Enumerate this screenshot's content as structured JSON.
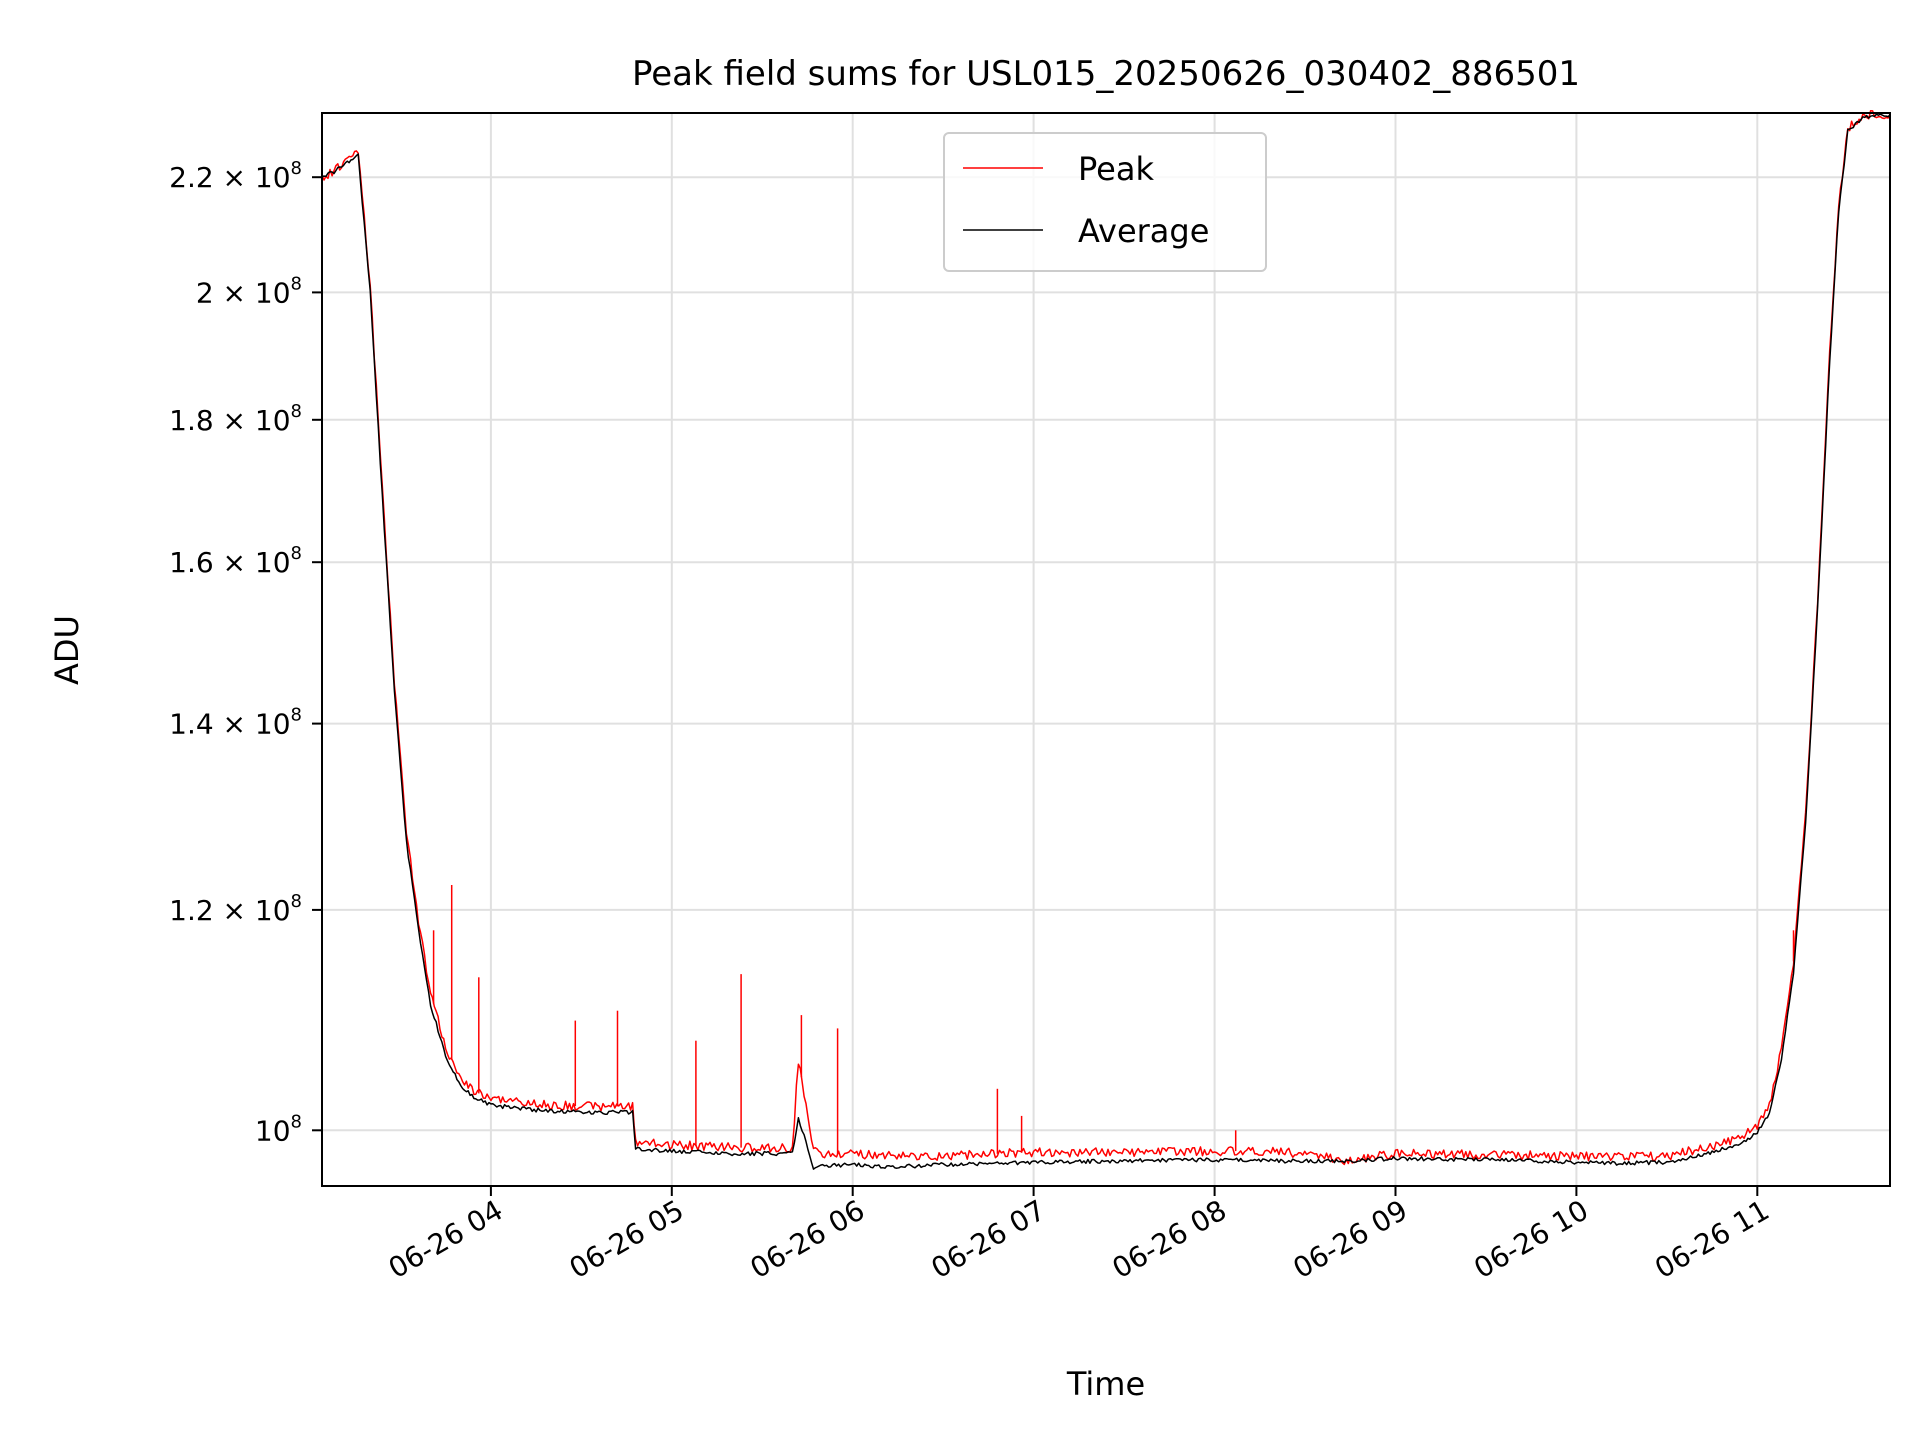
{
  "chart_data": {
    "type": "line",
    "title": "Peak field sums for USL015_20250626_030402_886501",
    "xlabel": "Time",
    "ylabel": "ADU",
    "yscale": "log",
    "grid": true,
    "legend_position": "top-center",
    "xlim": [
      "2025-06-26 03:04",
      "2025-06-26 11:44"
    ],
    "ylim": [
      95500000.0,
      232000000.0
    ],
    "x_ticks": [
      {
        "t": "2025-06-26 04:00",
        "label": "06-26 04"
      },
      {
        "t": "2025-06-26 05:00",
        "label": "06-26 05"
      },
      {
        "t": "2025-06-26 06:00",
        "label": "06-26 06"
      },
      {
        "t": "2025-06-26 07:00",
        "label": "06-26 07"
      },
      {
        "t": "2025-06-26 08:00",
        "label": "06-26 08"
      },
      {
        "t": "2025-06-26 09:00",
        "label": "06-26 09"
      },
      {
        "t": "2025-06-26 10:00",
        "label": "06-26 10"
      },
      {
        "t": "2025-06-26 11:00",
        "label": "06-26 11"
      }
    ],
    "y_ticks": [
      {
        "v": 100000000,
        "mant": "10",
        "exp": "8"
      },
      {
        "v": 120000000,
        "mant": "1.2 × 10",
        "exp": "8"
      },
      {
        "v": 140000000,
        "mant": "1.4 × 10",
        "exp": "8"
      },
      {
        "v": 160000000,
        "mant": "1.6 × 10",
        "exp": "8"
      },
      {
        "v": 180000000,
        "mant": "1.8 × 10",
        "exp": "8"
      },
      {
        "v": 200000000,
        "mant": "2 × 10",
        "exp": "8"
      },
      {
        "v": 220000000,
        "mant": "2.2 × 10",
        "exp": "8"
      }
    ],
    "series": [
      {
        "name": "Peak",
        "color": "#ff0000",
        "points": [
          [
            "2025-06-26 03:04",
            220000000.0
          ],
          [
            "2025-06-26 03:08",
            221000000.0
          ],
          [
            "2025-06-26 03:13",
            224000000.0
          ],
          [
            "2025-06-26 03:16",
            225000000.0
          ],
          [
            "2025-06-26 03:20",
            201000000.0
          ],
          [
            "2025-06-26 03:24",
            170000000.0
          ],
          [
            "2025-06-26 03:28",
            145000000.0
          ],
          [
            "2025-06-26 03:32",
            128000000.0
          ],
          [
            "2025-06-26 03:36",
            119000000.0
          ],
          [
            "2025-06-26 03:40",
            112000000.0
          ],
          [
            "2025-06-26 03:45",
            107000000.0
          ],
          [
            "2025-06-26 03:50",
            104500000.0
          ],
          [
            "2025-06-26 03:55",
            103200000.0
          ],
          [
            "2025-06-26 04:00",
            102700000.0
          ],
          [
            "2025-06-26 04:15",
            102200000.0
          ],
          [
            "2025-06-26 04:30",
            102000000.0
          ],
          [
            "2025-06-26 04:47",
            102000000.0
          ],
          [
            "2025-06-26 04:48",
            99000000.0
          ],
          [
            "2025-06-26 05:00",
            98800000.0
          ],
          [
            "2025-06-26 05:20",
            98600000.0
          ],
          [
            "2025-06-26 05:40",
            98500000.0
          ],
          [
            "2025-06-26 05:42",
            106000000.0
          ],
          [
            "2025-06-26 05:47",
            98500000.0
          ],
          [
            "2025-06-26 05:50",
            98000000.0
          ],
          [
            "2025-06-26 06:00",
            98100000.0
          ],
          [
            "2025-06-26 06:10",
            97900000.0
          ],
          [
            "2025-06-26 06:30",
            97900000.0
          ],
          [
            "2025-06-26 07:00",
            98200000.0
          ],
          [
            "2025-06-26 07:30",
            98200000.0
          ],
          [
            "2025-06-26 08:00",
            98300000.0
          ],
          [
            "2025-06-26 08:22",
            98300000.0
          ],
          [
            "2025-06-26 08:45",
            97500000.0
          ],
          [
            "2025-06-26 09:00",
            98100000.0
          ],
          [
            "2025-06-26 09:30",
            98000000.0
          ],
          [
            "2025-06-26 10:00",
            97900000.0
          ],
          [
            "2025-06-26 10:10",
            97800000.0
          ],
          [
            "2025-06-26 10:30",
            97900000.0
          ],
          [
            "2025-06-26 10:45",
            98700000.0
          ],
          [
            "2025-06-26 10:55",
            99500000.0
          ],
          [
            "2025-06-26 11:00",
            100300000.0
          ],
          [
            "2025-06-26 11:04",
            102000000.0
          ],
          [
            "2025-06-26 11:08",
            107000000.0
          ],
          [
            "2025-06-26 11:12",
            115000000.0
          ],
          [
            "2025-06-26 11:16",
            130000000.0
          ],
          [
            "2025-06-26 11:20",
            155000000.0
          ],
          [
            "2025-06-26 11:24",
            190000000.0
          ],
          [
            "2025-06-26 11:27",
            215000000.0
          ],
          [
            "2025-06-26 11:30",
            229000000.0
          ],
          [
            "2025-06-26 11:35",
            231500000.0
          ],
          [
            "2025-06-26 11:44",
            231800000.0
          ]
        ],
        "spikes": [
          [
            "2025-06-26 03:41",
            118000000.0
          ],
          [
            "2025-06-26 03:47",
            122500000.0
          ],
          [
            "2025-06-26 03:56",
            113500000.0
          ],
          [
            "2025-06-26 04:28",
            109500000.0
          ],
          [
            "2025-06-26 04:42",
            110400000.0
          ],
          [
            "2025-06-26 05:08",
            107700000.0
          ],
          [
            "2025-06-26 05:23",
            113800000.0
          ],
          [
            "2025-06-26 05:43",
            110000000.0
          ],
          [
            "2025-06-26 05:55",
            108800000.0
          ],
          [
            "2025-06-26 06:48",
            103500000.0
          ],
          [
            "2025-06-26 06:56",
            101200000.0
          ],
          [
            "2025-06-26 08:07",
            100000000.0
          ],
          [
            "2025-06-26 11:12",
            118000000.0
          ]
        ]
      },
      {
        "name": "Average",
        "color": "#000000",
        "points": [
          [
            "2025-06-26 03:04",
            220000000.0
          ],
          [
            "2025-06-26 03:08",
            221000000.0
          ],
          [
            "2025-06-26 03:13",
            223000000.0
          ],
          [
            "2025-06-26 03:16",
            224000000.0
          ],
          [
            "2025-06-26 03:20",
            200000000.0
          ],
          [
            "2025-06-26 03:24",
            169000000.0
          ],
          [
            "2025-06-26 03:28",
            144000000.0
          ],
          [
            "2025-06-26 03:32",
            127000000.0
          ],
          [
            "2025-06-26 03:36",
            118000000.0
          ],
          [
            "2025-06-26 03:40",
            111000000.0
          ],
          [
            "2025-06-26 03:45",
            106300000.0
          ],
          [
            "2025-06-26 03:50",
            103800000.0
          ],
          [
            "2025-06-26 03:55",
            102700000.0
          ],
          [
            "2025-06-26 04:00",
            102100000.0
          ],
          [
            "2025-06-26 04:15",
            101700000.0
          ],
          [
            "2025-06-26 04:30",
            101500000.0
          ],
          [
            "2025-06-26 04:47",
            101500000.0
          ],
          [
            "2025-06-26 04:48",
            98500000.0
          ],
          [
            "2025-06-26 05:00",
            98300000.0
          ],
          [
            "2025-06-26 05:20",
            98100000.0
          ],
          [
            "2025-06-26 05:40",
            98100000.0
          ],
          [
            "2025-06-26 05:42",
            101000000.0
          ],
          [
            "2025-06-26 05:47",
            97000000.0
          ],
          [
            "2025-06-26 05:50",
            97100000.0
          ],
          [
            "2025-06-26 06:00",
            97200000.0
          ],
          [
            "2025-06-26 06:10",
            97000000.0
          ],
          [
            "2025-06-26 06:30",
            97200000.0
          ],
          [
            "2025-06-26 07:00",
            97400000.0
          ],
          [
            "2025-06-26 07:30",
            97500000.0
          ],
          [
            "2025-06-26 08:00",
            97600000.0
          ],
          [
            "2025-06-26 08:22",
            97500000.0
          ],
          [
            "2025-06-26 08:45",
            97500000.0
          ],
          [
            "2025-06-26 09:00",
            97700000.0
          ],
          [
            "2025-06-26 09:30",
            97600000.0
          ],
          [
            "2025-06-26 10:00",
            97400000.0
          ],
          [
            "2025-06-26 10:10",
            97300000.0
          ],
          [
            "2025-06-26 10:30",
            97400000.0
          ],
          [
            "2025-06-26 10:45",
            98200000.0
          ],
          [
            "2025-06-26 10:55",
            99000000.0
          ],
          [
            "2025-06-26 11:00",
            99800000.0
          ],
          [
            "2025-06-26 11:04",
            101500000.0
          ],
          [
            "2025-06-26 11:08",
            106000000.0
          ],
          [
            "2025-06-26 11:12",
            114000000.0
          ],
          [
            "2025-06-26 11:16",
            129000000.0
          ],
          [
            "2025-06-26 11:20",
            154000000.0
          ],
          [
            "2025-06-26 11:24",
            189000000.0
          ],
          [
            "2025-06-26 11:27",
            214000000.0
          ],
          [
            "2025-06-26 11:30",
            228500000.0
          ],
          [
            "2025-06-26 11:35",
            231200000.0
          ],
          [
            "2025-06-26 11:44",
            231600000.0
          ]
        ]
      }
    ]
  }
}
